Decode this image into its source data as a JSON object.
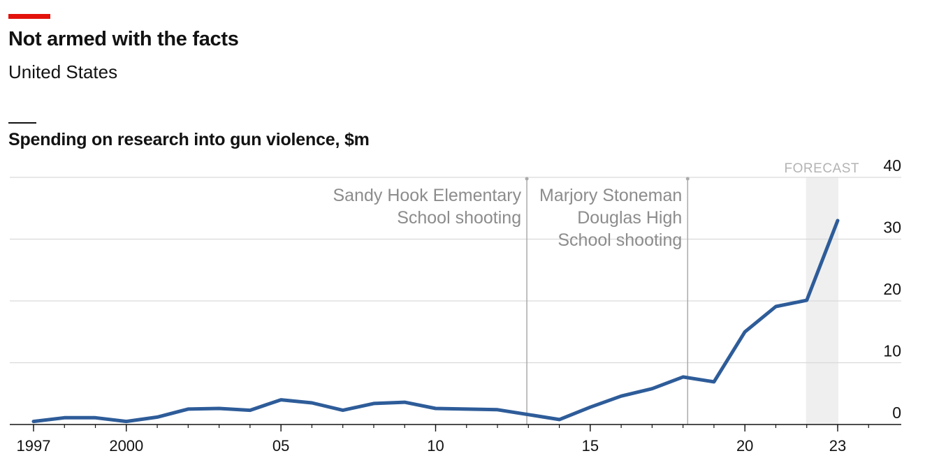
{
  "header": {
    "title": "Not armed with the facts",
    "subtitle": "United States"
  },
  "colors": {
    "accent": "#e3120b",
    "line": "#2e5c99",
    "grid": "#d9d9d9",
    "annotation": "#8c8c8c",
    "forecast_band": "#efefef"
  },
  "chart_data": {
    "type": "line",
    "title": "Spending on research into gun violence, $m",
    "xlabel": "",
    "ylabel": "",
    "xlim": [
      1997,
      2025
    ],
    "ylim": [
      0,
      40
    ],
    "grid": true,
    "y_axis_side": "right",
    "yticks": [
      0,
      10,
      20,
      30,
      40
    ],
    "xticks": [
      {
        "value": 1997,
        "label": "1997"
      },
      {
        "value": 2000,
        "label": "2000"
      },
      {
        "value": 2005,
        "label": "05"
      },
      {
        "value": 2010,
        "label": "10"
      },
      {
        "value": 2015,
        "label": "15"
      },
      {
        "value": 2020,
        "label": "20"
      },
      {
        "value": 2023,
        "label": "23"
      }
    ],
    "series": [
      {
        "x": [
          1997,
          1998,
          1999,
          2000,
          2001,
          2002,
          2003,
          2004,
          2005,
          2006,
          2007,
          2008,
          2009,
          2010,
          2011,
          2012,
          2013,
          2014,
          2015,
          2016,
          2017,
          2018,
          2019,
          2020,
          2021,
          2022,
          2023
        ],
        "values": [
          0.5,
          1.1,
          1.1,
          0.5,
          1.2,
          2.5,
          2.6,
          2.3,
          4.0,
          3.5,
          2.3,
          3.4,
          3.6,
          2.6,
          2.5,
          2.4,
          1.6,
          0.8,
          2.8,
          4.6,
          5.8,
          7.7,
          6.9,
          15.0,
          19.1,
          20.1,
          33.0
        ]
      }
    ],
    "forecast": {
      "label": "FORECAST",
      "from": 2022,
      "to": 2023
    },
    "annotations": [
      {
        "x": 2012.95,
        "lines": [
          "Sandy Hook Elementary",
          "School shooting"
        ]
      },
      {
        "x": 2018.15,
        "lines": [
          "Marjory Stoneman",
          "Douglas High",
          "School shooting"
        ]
      }
    ]
  }
}
